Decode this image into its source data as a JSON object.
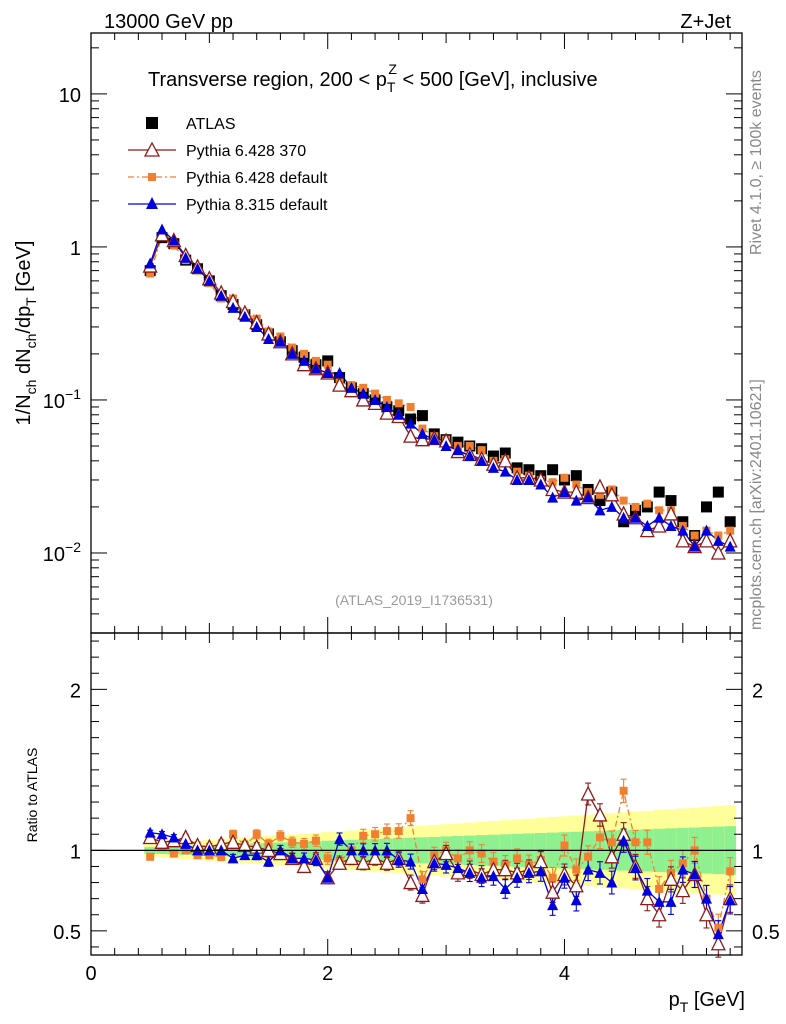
{
  "header": {
    "left": "13000 GeV pp",
    "right": "Z+Jet"
  },
  "side_labels": {
    "rivet": "Rivet 4.1.0, ≥ 100k events",
    "mcplots": "mcplots.cern.ch [arXiv:2401.10621]"
  },
  "legend": [
    {
      "label": "ATLAS",
      "color": "#000000",
      "marker": "square"
    },
    {
      "label": "Pythia 6.428 370",
      "color": "#8b1a1a",
      "marker": "open-triangle"
    },
    {
      "label": "Pythia 6.428 default",
      "color": "#f08030",
      "marker": "square-small"
    },
    {
      "label": "Pythia 8.315 default",
      "color": "#0000dd",
      "marker": "triangle"
    }
  ],
  "chart_data": {
    "type": "scatter",
    "title": "Transverse region, 200 < pTZ < 500 [GeV], inclusive",
    "title_parts": {
      "pre": "Transverse region, 200 < p",
      "sub": "T",
      "sup": "Z",
      "post": " < 500 [GeV], inclusive"
    },
    "analysis_id": "(ATLAS_2019_I1736531)",
    "xlabel": "p_T [GeV]",
    "xlabel_parts": {
      "base": "p",
      "sub": "T",
      "unit": " [GeV]"
    },
    "ylabel_main": "1/N_ch dN_ch/dp_T [GeV]",
    "ylabel_ratio": "Ratio to ATLAS",
    "xlim": [
      0,
      5.5
    ],
    "ylim_main": [
      0.003,
      25
    ],
    "ylim_ratio": [
      0.35,
      2.35
    ],
    "yscale_main": "log",
    "x_ticks": [
      0,
      2,
      4
    ],
    "x_tick_labels": [
      "0",
      "2",
      "4"
    ],
    "main_y_ticks": [
      0.01,
      0.1,
      1,
      10
    ],
    "main_y_tick_labels": [
      {
        "base": "10",
        "exp": "−2"
      },
      {
        "base": "10",
        "exp": "−1"
      },
      {
        "base": "1",
        "exp": ""
      },
      {
        "base": "10",
        "exp": ""
      }
    ],
    "ratio_y_ticks": [
      0.5,
      1,
      2
    ],
    "ratio_y_tick_labels": [
      "0.5",
      "1",
      "2"
    ],
    "x": [
      0.5,
      0.6,
      0.7,
      0.8,
      0.9,
      1.0,
      1.1,
      1.2,
      1.3,
      1.4,
      1.5,
      1.6,
      1.7,
      1.8,
      1.9,
      2.0,
      2.1,
      2.2,
      2.3,
      2.4,
      2.5,
      2.6,
      2.7,
      2.8,
      2.9,
      3.0,
      3.1,
      3.2,
      3.3,
      3.4,
      3.5,
      3.6,
      3.7,
      3.8,
      3.9,
      4.0,
      4.1,
      4.2,
      4.3,
      4.4,
      4.5,
      4.6,
      4.7,
      4.8,
      4.9,
      5.0,
      5.1,
      5.2,
      5.3,
      5.4
    ],
    "series": [
      {
        "name": "ATLAS",
        "values": [
          0.7,
          1.15,
          1.05,
          0.82,
          0.72,
          0.6,
          0.48,
          0.42,
          0.36,
          0.31,
          0.27,
          0.24,
          0.21,
          0.19,
          0.17,
          0.18,
          0.14,
          0.12,
          0.11,
          0.1,
          0.09,
          0.085,
          0.075,
          0.079,
          0.06,
          0.055,
          0.053,
          0.05,
          0.048,
          0.043,
          0.045,
          0.036,
          0.035,
          0.032,
          0.035,
          0.03,
          0.032,
          0.026,
          0.022,
          0.025,
          0.016,
          0.019,
          0.02,
          0.025,
          0.022,
          0.016,
          0.013,
          0.02,
          0.025,
          0.016
        ]
      },
      {
        "name": "Pythia 6.428 370",
        "values": [
          0.75,
          1.2,
          1.1,
          0.88,
          0.74,
          0.62,
          0.5,
          0.44,
          0.37,
          0.32,
          0.27,
          0.24,
          0.2,
          0.17,
          0.16,
          0.15,
          0.125,
          0.115,
          0.1,
          0.095,
          0.082,
          0.078,
          0.058,
          0.055,
          0.056,
          0.054,
          0.046,
          0.044,
          0.041,
          0.038,
          0.04,
          0.031,
          0.031,
          0.03,
          0.026,
          0.025,
          0.025,
          0.023,
          0.027,
          0.024,
          0.018,
          0.017,
          0.014,
          0.015,
          0.018,
          0.012,
          0.011,
          0.012,
          0.01,
          0.012
        ]
      },
      {
        "name": "Pythia 6.428 default",
        "values": [
          0.67,
          1.18,
          1.02,
          0.82,
          0.7,
          0.58,
          0.46,
          0.46,
          0.37,
          0.34,
          0.28,
          0.26,
          0.22,
          0.2,
          0.18,
          0.17,
          0.13,
          0.125,
          0.12,
          0.11,
          0.1,
          0.095,
          0.09,
          0.065,
          0.058,
          0.055,
          0.05,
          0.05,
          0.047,
          0.04,
          0.041,
          0.034,
          0.032,
          0.03,
          0.029,
          0.031,
          0.028,
          0.025,
          0.024,
          0.026,
          0.022,
          0.02,
          0.021,
          0.019,
          0.019,
          0.015,
          0.013,
          0.014,
          0.013,
          0.014
        ]
      },
      {
        "name": "Pythia 8.315 default",
        "values": [
          0.78,
          1.3,
          1.1,
          0.85,
          0.72,
          0.6,
          0.48,
          0.4,
          0.35,
          0.3,
          0.25,
          0.24,
          0.2,
          0.18,
          0.16,
          0.15,
          0.15,
          0.12,
          0.11,
          0.1,
          0.09,
          0.08,
          0.07,
          0.06,
          0.055,
          0.05,
          0.047,
          0.043,
          0.04,
          0.036,
          0.034,
          0.03,
          0.03,
          0.028,
          0.023,
          0.025,
          0.022,
          0.023,
          0.019,
          0.02,
          0.017,
          0.017,
          0.015,
          0.017,
          0.015,
          0.014,
          0.011,
          0.014,
          0.012,
          0.011
        ]
      }
    ],
    "ratio_series": [
      {
        "name": "Pythia 6.428 370",
        "values": [
          1.08,
          1.05,
          1.06,
          1.08,
          1.03,
          1.02,
          1.04,
          1.05,
          1.03,
          1.02,
          1.0,
          0.98,
          0.95,
          0.9,
          0.95,
          0.83,
          0.92,
          0.95,
          0.92,
          0.95,
          0.92,
          0.95,
          0.8,
          0.72,
          0.93,
          0.98,
          0.86,
          0.88,
          0.85,
          0.88,
          0.88,
          0.86,
          0.88,
          0.93,
          0.74,
          0.85,
          0.78,
          1.35,
          1.22,
          0.96,
          1.1,
          0.9,
          0.7,
          0.6,
          0.82,
          0.75,
          0.85,
          0.6,
          0.42,
          0.7
        ]
      },
      {
        "name": "Pythia 6.428 default",
        "values": [
          0.96,
          1.02,
          0.98,
          1.0,
          0.97,
          0.97,
          0.96,
          1.1,
          1.03,
          1.1,
          1.04,
          1.09,
          1.05,
          1.04,
          1.06,
          0.95,
          0.93,
          1.0,
          1.09,
          1.1,
          1.12,
          1.12,
          1.2,
          0.82,
          0.97,
          1.0,
          0.95,
          1.0,
          0.98,
          0.93,
          0.91,
          0.95,
          0.91,
          0.94,
          0.83,
          1.03,
          0.88,
          0.96,
          1.08,
          1.05,
          1.37,
          1.05,
          1.05,
          0.76,
          0.86,
          0.92,
          1.0,
          0.7,
          0.52,
          0.87
        ]
      },
      {
        "name": "Pythia 8.315 default",
        "values": [
          1.11,
          1.1,
          1.08,
          1.04,
          1.0,
          1.0,
          1.0,
          0.95,
          0.97,
          0.97,
          0.93,
          1.0,
          0.95,
          0.95,
          0.94,
          0.83,
          1.07,
          1.0,
          1.0,
          1.0,
          1.0,
          0.94,
          0.93,
          0.76,
          0.92,
          0.91,
          0.89,
          0.86,
          0.83,
          0.84,
          0.76,
          0.83,
          0.86,
          0.87,
          0.66,
          0.83,
          0.69,
          0.88,
          0.86,
          0.8,
          1.06,
          0.89,
          0.75,
          0.68,
          0.68,
          0.88,
          0.85,
          0.7,
          0.48,
          0.69
        ]
      }
    ]
  }
}
